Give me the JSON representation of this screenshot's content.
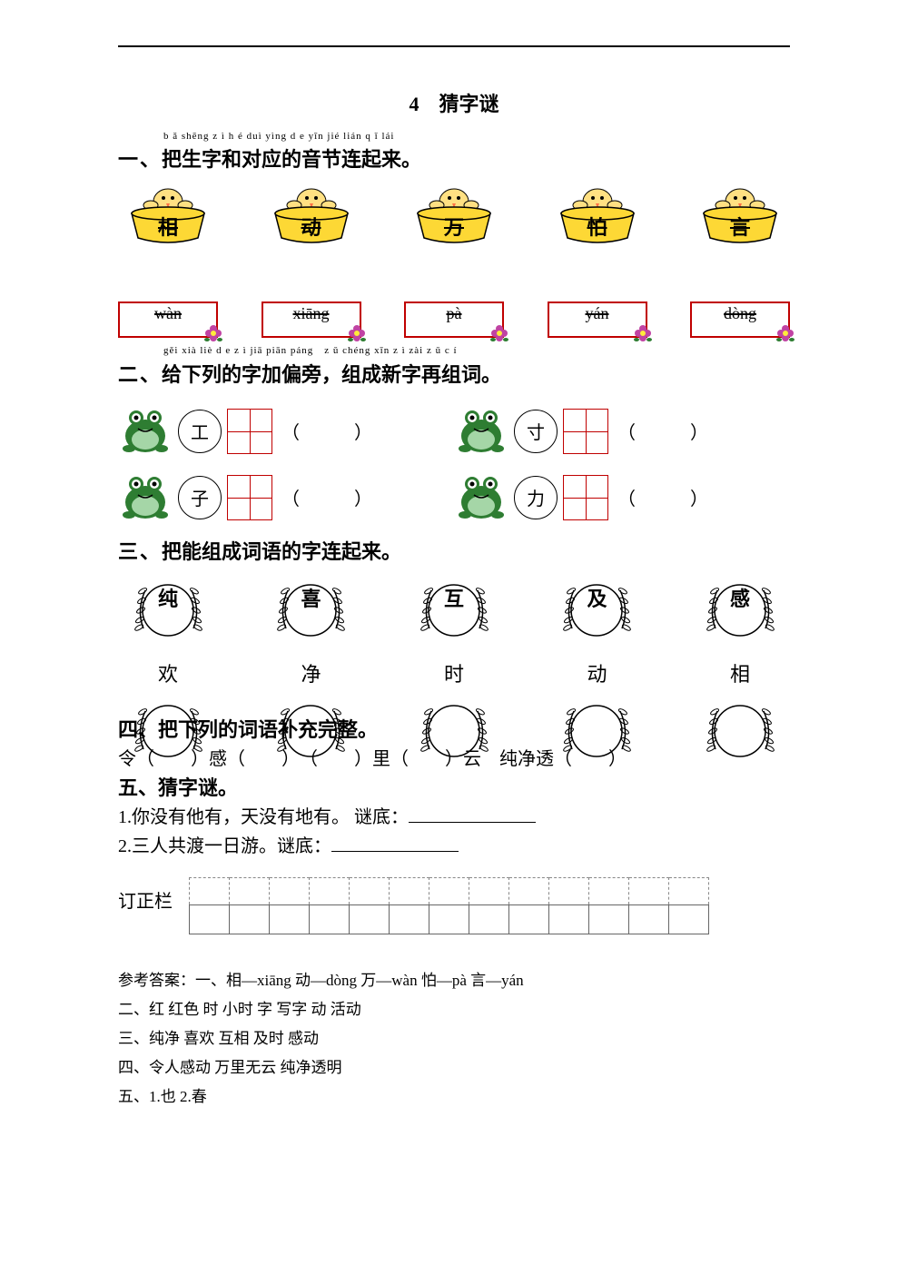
{
  "colors": {
    "bucket_fill": "#fdd835",
    "bucket_stroke": "#000000",
    "chick_body": "#ffe082",
    "chick_beak": "#ff7043",
    "pinyin_box_border": "#c00000",
    "flower_petal": "#c043a3",
    "flower_center": "#ffeb3b",
    "leaf": "#2e7d32",
    "frog_body": "#2e7d32",
    "frog_light": "#a5d6a7",
    "tian_border": "#c00000",
    "corr_dash": "#888888",
    "corr_solid": "#666666"
  },
  "title": "4　猜字谜",
  "sec1": {
    "pinyin": "b ǎ shēng z ì h é duì yìng d e yīn jié lián q ǐ lái",
    "heading_ord": "一、",
    "heading_text": "把生字和对应的音节连起来。",
    "chicks": [
      "相",
      "动",
      "万",
      "怕",
      "言"
    ],
    "pinyins": [
      "wàn",
      "xiāng",
      "pà",
      "yán",
      "dòng"
    ]
  },
  "sec2": {
    "pinyin": "gěi xià liè d e z ì jiā piān páng　z ǔ chéng xīn z ì zài z ǔ c í",
    "heading_ord": "二、",
    "heading_text": "给下列的字加偏旁，组成新字再组词。",
    "radicals": [
      [
        "工",
        "寸"
      ],
      [
        "子",
        "力"
      ]
    ],
    "paren_text": "（　　　）"
  },
  "sec3": {
    "heading_ord": "三、",
    "heading_text": "把能组成词语的字连起来。",
    "top": [
      "纯",
      "喜",
      "互",
      "及",
      "感"
    ],
    "bottom_chars": [
      "欢",
      "净",
      "时",
      "动",
      "相"
    ]
  },
  "sec4": {
    "heading_ord": "四、",
    "heading_text": "把下列的词语补充完整。",
    "line": "令（　　）感（　　）　（　　）里（　　）云　纯净透（　　）"
  },
  "sec5": {
    "heading_ord": "五、",
    "heading_text": "猜字谜。",
    "q1_num": "1.",
    "q1": "你没有他有，天没有地有。 谜底：",
    "q2_num": "2.",
    "q2": "三人共渡一日游。谜底："
  },
  "correction_label": "订正栏",
  "correction_cols": 13,
  "answers": {
    "l1": "参考答案：一、相—xiāng 动—dòng 万—wàn 怕—pà 言—yán",
    "l2": "二、红 红色 时 小时 字 写字 动 活动",
    "l3": "三、纯净 喜欢 互相 及时 感动",
    "l4": "四、令人感动 万里无云 纯净透明",
    "l5": "五、1.也 2.春"
  }
}
